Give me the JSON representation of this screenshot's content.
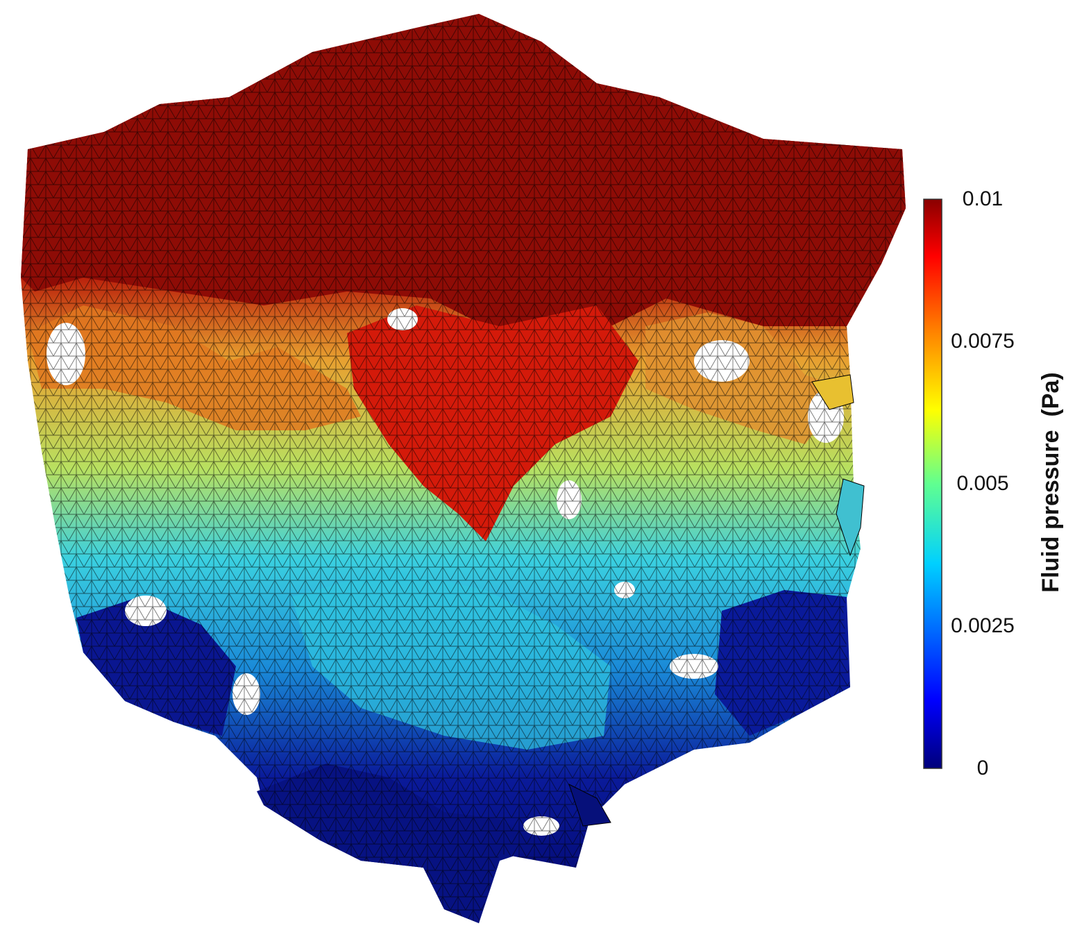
{
  "colorbar": {
    "title": "Fluid pressure  (Pa)",
    "min": 0,
    "max": 0.01,
    "ticks": [
      {
        "label": "0.01",
        "value": 0.01
      },
      {
        "label": "0.0075",
        "value": 0.0075
      },
      {
        "label": "0.005",
        "value": 0.005
      },
      {
        "label": "0.0025",
        "value": 0.0025
      },
      {
        "label": "0",
        "value": 0
      }
    ],
    "colors": [
      "#00007a",
      "#0000ff",
      "#00d0ff",
      "#60ff90",
      "#ffff00",
      "#ff8000",
      "#ff0000",
      "#8a0000"
    ]
  }
}
